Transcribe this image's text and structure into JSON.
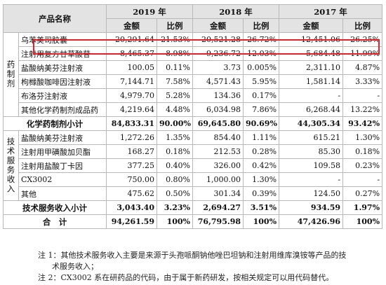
{
  "header": {
    "product_name": "产品名称",
    "years": [
      "2019 年",
      "2018 年",
      "2017 年"
    ],
    "amount": "金额",
    "ratio": "比例"
  },
  "categories": {
    "pharma": "药制剂",
    "tech": "技术服务收入"
  },
  "pharma_rows": [
    {
      "name": "乌苯美司胶囊",
      "v2019": "20,291.64",
      "r2019": "21.53%",
      "v2018": "20,521.28",
      "r2018": "26.72%",
      "v2017": "12,451.06",
      "r2017": "26.25%"
    },
    {
      "name": "注射用复方甘草酸苷",
      "v2019": "8,465.37",
      "r2019": "8.98%",
      "v2018": "9,236.72",
      "r2018": "12.03%",
      "v2017": "5,684.48",
      "r2017": "11.99%"
    },
    {
      "name": "盐酸纳美芬注射液",
      "v2019": "100.05",
      "r2019": "0.11%",
      "v2018": "3.73",
      "r2018": "0.005%",
      "v2017": "2,311.10",
      "r2017": "4.87%"
    },
    {
      "name": "枸橼酸咖啡因注射液",
      "v2019": "7,144.71",
      "r2019": "7.58%",
      "v2018": "4,571.43",
      "r2018": "5.95%",
      "v2017": "1,581.14",
      "r2017": "3.33%"
    },
    {
      "name": "布洛芬注射液",
      "v2019": "4,979.70",
      "r2019": "5.28%",
      "v2018": "134.36",
      "r2018": "0.17%",
      "v2017": "-",
      "r2017": "-"
    },
    {
      "name": "其他化学药制剂成品药",
      "v2019": "4,219.64",
      "r2019": "4.48%",
      "v2018": "6,034.98",
      "r2018": "7.86%",
      "v2017": "6,268.44",
      "r2017": "13.22%"
    }
  ],
  "pharma_subtotal": {
    "name": "化学药制剂小计",
    "v2019": "84,833.31",
    "r2019": "90.00%",
    "v2018": "69,645.80",
    "r2018": "90.69%",
    "v2017": "44,305.34",
    "r2017": "93.42%"
  },
  "tech_rows": [
    {
      "name": "盐酸纳美芬注射液",
      "v2019": "1,272.26",
      "r2019": "1.35%",
      "v2018": "854.40",
      "r2018": "1.11%",
      "v2017": "615.21",
      "r2017": "1.30%"
    },
    {
      "name": "注射用甲磺酸加贝酯",
      "v2019": "168.27",
      "r2019": "0.18%",
      "v2018": "212.53",
      "r2018": "0.28%",
      "v2017": "85.30",
      "r2017": "0.18%"
    },
    {
      "name": "注射用盐酸丁卡因",
      "v2019": "377.25",
      "r2019": "0.40%",
      "v2018": "326.00",
      "r2018": "0.42%",
      "v2017": "109.58",
      "r2017": "0.23%"
    },
    {
      "name": "CX3002",
      "v2019": "750.00",
      "r2019": "0.80%",
      "v2018": "1,000.00",
      "r2018": "1.30%",
      "v2017": "-",
      "r2017": "-"
    },
    {
      "name": "其他",
      "v2019": "475.62",
      "r2019": "0.50%",
      "v2018": "301.34",
      "r2018": "0.39%",
      "v2017": "124.50",
      "r2017": "0.27%"
    }
  ],
  "tech_subtotal": {
    "name": "技术服务收入小计",
    "v2019": "3,043.40",
    "r2019": "3.23%",
    "v2018": "2,694.27",
    "r2018": "3.51%",
    "v2017": "934.59",
    "r2017": "1.97%"
  },
  "total": {
    "name": "合　计",
    "v2019": "94,261.59",
    "r2019": "100%",
    "v2018": "76,795.98",
    "r2018": "100%",
    "v2017": "47,426.96",
    "r2017": "100%"
  },
  "notes": {
    "note1_a": "注 1：其他技术服务收入主要是来源于头孢哌酮钠他唑巴坦钠和注射用维库溴铵等产品的技",
    "note1_b": "术服务收入；",
    "note2": "注 2：CX3002 系在研药品的代码，由于属于新药研发，按相关规定可以用代码替代。"
  },
  "colors": {
    "highlight": "#e0232b",
    "header_bg": "#e3e3e3"
  }
}
